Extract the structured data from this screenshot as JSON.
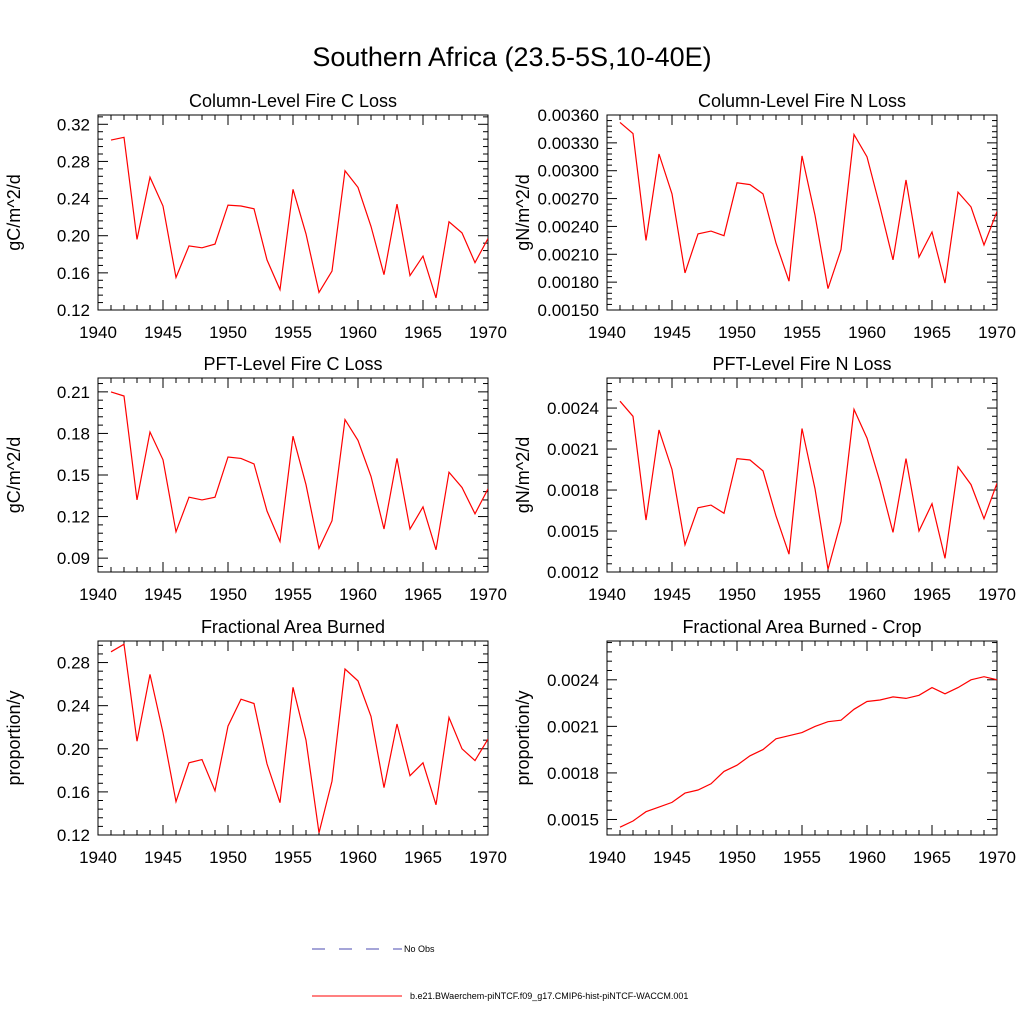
{
  "figure": {
    "title": "Southern Africa (23.5-5S,10-40E)"
  },
  "legend": {
    "entries": [
      {
        "label": "No Obs",
        "color": "#4b4bb0",
        "dash": "dashed"
      },
      {
        "label": "b.e21.BWaerchem-piNTCF.f09_g17.CMIP6-hist-piNTCF-WACCM.001",
        "color": "#ff0000",
        "dash": "solid"
      }
    ]
  },
  "chart_data": [
    {
      "type": "line",
      "title": "Column-Level Fire C Loss",
      "ylabel": "gC/m^2/d",
      "xlim": [
        1940,
        1970
      ],
      "ylim": [
        0.12,
        0.33
      ],
      "xticks": [
        1940,
        1945,
        1950,
        1955,
        1960,
        1965,
        1970
      ],
      "ytick_labels": [
        "0.12",
        "0.16",
        "0.20",
        "0.24",
        "0.28",
        "0.32"
      ],
      "x": [
        1941,
        1942,
        1943,
        1944,
        1945,
        1946,
        1947,
        1948,
        1949,
        1950,
        1951,
        1952,
        1953,
        1954,
        1955,
        1956,
        1957,
        1958,
        1959,
        1960,
        1961,
        1962,
        1963,
        1964,
        1965,
        1966,
        1967,
        1968,
        1969,
        1970
      ],
      "series": [
        {
          "name": "b.e21.BWaerchem-piNTCF.f09_g17.CMIP6-hist-piNTCF-WACCM.001",
          "color": "#ff0000",
          "values": [
            0.303,
            0.306,
            0.196,
            0.263,
            0.232,
            0.155,
            0.189,
            0.187,
            0.191,
            0.233,
            0.232,
            0.229,
            0.174,
            0.142,
            0.25,
            0.202,
            0.139,
            0.162,
            0.27,
            0.252,
            0.21,
            0.158,
            0.234,
            0.157,
            0.178,
            0.133,
            0.215,
            0.203,
            0.171,
            0.197
          ]
        }
      ]
    },
    {
      "type": "line",
      "title": "Column-Level Fire N Loss",
      "ylabel": "gN/m^2/d",
      "xlim": [
        1940,
        1970
      ],
      "ylim": [
        0.0015,
        0.0036
      ],
      "xticks": [
        1940,
        1945,
        1950,
        1955,
        1960,
        1965,
        1970
      ],
      "ytick_labels": [
        "0.00150",
        "0.00180",
        "0.00210",
        "0.00240",
        "0.00270",
        "0.00300",
        "0.00330",
        "0.00360"
      ],
      "x": [
        1941,
        1942,
        1943,
        1944,
        1945,
        1946,
        1947,
        1948,
        1949,
        1950,
        1951,
        1952,
        1953,
        1954,
        1955,
        1956,
        1957,
        1958,
        1959,
        1960,
        1961,
        1962,
        1963,
        1964,
        1965,
        1966,
        1967,
        1968,
        1969,
        1970
      ],
      "series": [
        {
          "name": "b.e21.BWaerchem-piNTCF.f09_g17.CMIP6-hist-piNTCF-WACCM.001",
          "color": "#ff0000",
          "values": [
            0.00352,
            0.0034,
            0.00225,
            0.00318,
            0.00275,
            0.0019,
            0.00232,
            0.00235,
            0.0023,
            0.00287,
            0.00285,
            0.00275,
            0.00222,
            0.00181,
            0.00316,
            0.00252,
            0.00173,
            0.00215,
            0.00339,
            0.00315,
            0.00261,
            0.00204,
            0.0029,
            0.00207,
            0.00234,
            0.00179,
            0.00277,
            0.00261,
            0.0022,
            0.00256
          ]
        }
      ]
    },
    {
      "type": "line",
      "title": "PFT-Level Fire C Loss",
      "ylabel": "gC/m^2/d",
      "xlim": [
        1940,
        1970
      ],
      "ylim": [
        0.08,
        0.22
      ],
      "xticks": [
        1940,
        1945,
        1950,
        1955,
        1960,
        1965,
        1970
      ],
      "ytick_labels": [
        "0.09",
        "0.12",
        "0.15",
        "0.18",
        "0.21"
      ],
      "x": [
        1941,
        1942,
        1943,
        1944,
        1945,
        1946,
        1947,
        1948,
        1949,
        1950,
        1951,
        1952,
        1953,
        1954,
        1955,
        1956,
        1957,
        1958,
        1959,
        1960,
        1961,
        1962,
        1963,
        1964,
        1965,
        1966,
        1967,
        1968,
        1969,
        1970
      ],
      "series": [
        {
          "name": "b.e21.BWaerchem-piNTCF.f09_g17.CMIP6-hist-piNTCF-WACCM.001",
          "color": "#ff0000",
          "values": [
            0.21,
            0.207,
            0.132,
            0.181,
            0.161,
            0.109,
            0.134,
            0.132,
            0.134,
            0.163,
            0.162,
            0.158,
            0.124,
            0.102,
            0.178,
            0.143,
            0.097,
            0.117,
            0.19,
            0.175,
            0.149,
            0.111,
            0.162,
            0.111,
            0.127,
            0.096,
            0.152,
            0.141,
            0.122,
            0.14
          ]
        }
      ]
    },
    {
      "type": "line",
      "title": "PFT-Level Fire N Loss",
      "ylabel": "gN/m^2/d",
      "xlim": [
        1940,
        1970
      ],
      "ylim": [
        0.0012,
        0.00262
      ],
      "xticks": [
        1940,
        1945,
        1950,
        1955,
        1960,
        1965,
        1970
      ],
      "ytick_labels": [
        "0.0012",
        "0.0015",
        "0.0018",
        "0.0021",
        "0.0024"
      ],
      "x": [
        1941,
        1942,
        1943,
        1944,
        1945,
        1946,
        1947,
        1948,
        1949,
        1950,
        1951,
        1952,
        1953,
        1954,
        1955,
        1956,
        1957,
        1958,
        1959,
        1960,
        1961,
        1962,
        1963,
        1964,
        1965,
        1966,
        1967,
        1968,
        1969,
        1970
      ],
      "series": [
        {
          "name": "b.e21.BWaerchem-piNTCF.f09_g17.CMIP6-hist-piNTCF-WACCM.001",
          "color": "#ff0000",
          "values": [
            0.00245,
            0.00234,
            0.00158,
            0.00224,
            0.00195,
            0.0014,
            0.00167,
            0.00169,
            0.00163,
            0.00203,
            0.00202,
            0.00194,
            0.00161,
            0.00133,
            0.00225,
            0.00181,
            0.00122,
            0.00157,
            0.00239,
            0.00218,
            0.00186,
            0.00149,
            0.00203,
            0.0015,
            0.0017,
            0.0013,
            0.00197,
            0.00184,
            0.00159,
            0.00185
          ]
        }
      ]
    },
    {
      "type": "line",
      "title": "Fractional Area Burned",
      "ylabel": "proportion/y",
      "xlim": [
        1940,
        1970
      ],
      "ylim": [
        0.12,
        0.3
      ],
      "xticks": [
        1940,
        1945,
        1950,
        1955,
        1960,
        1965,
        1970
      ],
      "ytick_labels": [
        "0.12",
        "0.16",
        "0.20",
        "0.24",
        "0.28"
      ],
      "x": [
        1941,
        1942,
        1943,
        1944,
        1945,
        1946,
        1947,
        1948,
        1949,
        1950,
        1951,
        1952,
        1953,
        1954,
        1955,
        1956,
        1957,
        1958,
        1959,
        1960,
        1961,
        1962,
        1963,
        1964,
        1965,
        1966,
        1967,
        1968,
        1969,
        1970
      ],
      "series": [
        {
          "name": "b.e21.BWaerchem-piNTCF.f09_g17.CMIP6-hist-piNTCF-WACCM.001",
          "color": "#ff0000",
          "values": [
            0.29,
            0.297,
            0.207,
            0.269,
            0.215,
            0.151,
            0.187,
            0.19,
            0.161,
            0.221,
            0.246,
            0.242,
            0.186,
            0.15,
            0.257,
            0.208,
            0.122,
            0.17,
            0.274,
            0.263,
            0.23,
            0.164,
            0.223,
            0.175,
            0.187,
            0.148,
            0.229,
            0.2,
            0.189,
            0.209
          ]
        }
      ]
    },
    {
      "type": "line",
      "title": "Fractional Area Burned - Crop",
      "ylabel": "proportion/y",
      "xlim": [
        1940,
        1970
      ],
      "ylim": [
        0.0014,
        0.00265
      ],
      "xticks": [
        1940,
        1945,
        1950,
        1955,
        1960,
        1965,
        1970
      ],
      "ytick_labels": [
        "0.0015",
        "0.0018",
        "0.0021",
        "0.0024"
      ],
      "x": [
        1941,
        1942,
        1943,
        1944,
        1945,
        1946,
        1947,
        1948,
        1949,
        1950,
        1951,
        1952,
        1953,
        1954,
        1955,
        1956,
        1957,
        1958,
        1959,
        1960,
        1961,
        1962,
        1963,
        1964,
        1965,
        1966,
        1967,
        1968,
        1969,
        1970
      ],
      "series": [
        {
          "name": "b.e21.BWaerchem-piNTCF.f09_g17.CMIP6-hist-piNTCF-WACCM.001",
          "color": "#ff0000",
          "values": [
            0.00145,
            0.00149,
            0.00155,
            0.00158,
            0.00161,
            0.00167,
            0.00169,
            0.00173,
            0.00181,
            0.00185,
            0.00191,
            0.00195,
            0.00202,
            0.00204,
            0.00206,
            0.0021,
            0.00213,
            0.00214,
            0.00221,
            0.00226,
            0.00227,
            0.00229,
            0.00228,
            0.0023,
            0.00235,
            0.00231,
            0.00235,
            0.0024,
            0.00242,
            0.0024
          ]
        }
      ]
    }
  ]
}
